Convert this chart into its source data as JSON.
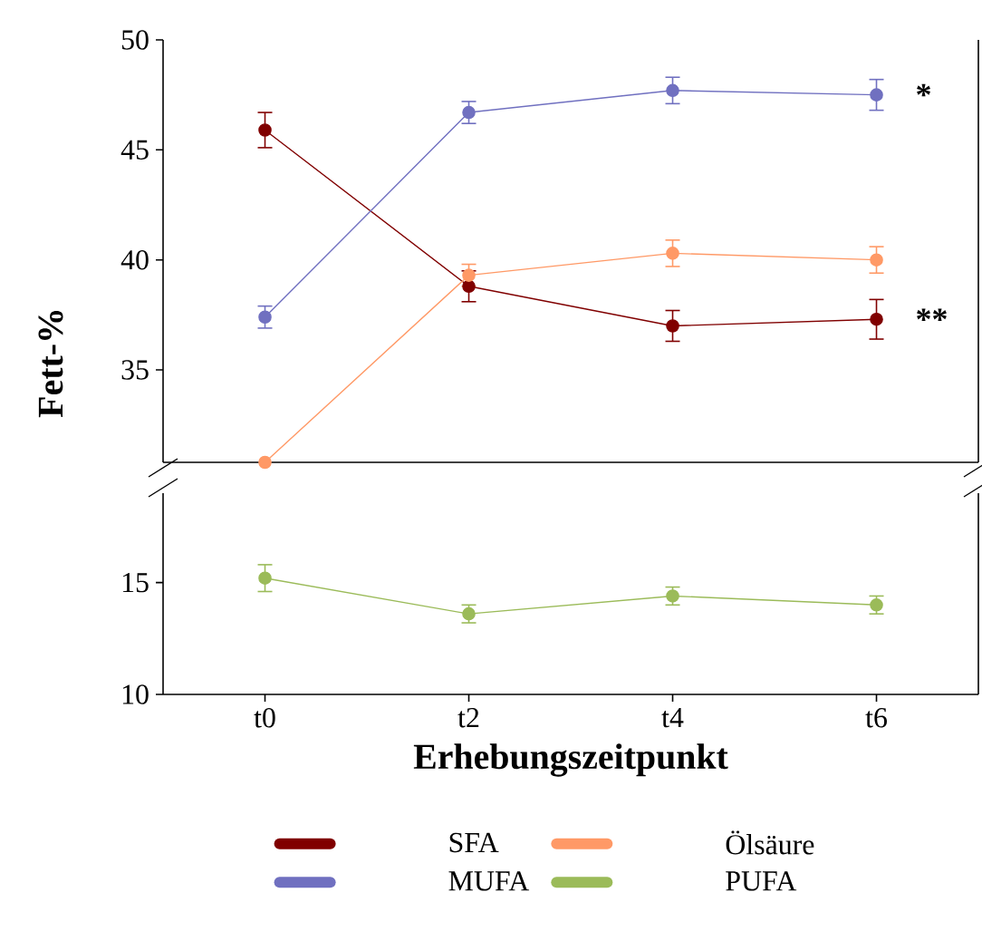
{
  "chart_data": [
    {
      "type": "line",
      "ylabel": "Fett-%",
      "categories": [
        "t0",
        "t2",
        "t4",
        "t6"
      ],
      "ylim": [
        30.8,
        50
      ],
      "yticks": [
        35,
        40,
        45,
        50
      ],
      "tick_labels": "y",
      "marker": "circle",
      "grid": false,
      "series": [
        {
          "name": "SFA",
          "color": "#800000",
          "values": [
            45.9,
            38.8,
            37.0,
            37.3
          ],
          "errors": [
            0.8,
            0.7,
            0.7,
            0.9
          ]
        },
        {
          "name": "MUFA",
          "color": "#7070c0",
          "values": [
            37.4,
            46.7,
            47.7,
            47.5
          ],
          "errors": [
            0.5,
            0.5,
            0.6,
            0.7
          ]
        },
        {
          "name": "Ölsäure",
          "color": "#ff9966",
          "values": [
            30.8,
            39.3,
            40.3,
            40.0
          ],
          "errors": [
            null,
            0.5,
            0.6,
            0.6
          ]
        }
      ],
      "annotations": [
        {
          "text": "*",
          "x": "t6",
          "y": 47.5
        },
        {
          "text": "**",
          "x": "t6",
          "y": 37.3
        }
      ]
    },
    {
      "type": "line",
      "xlabel": "Erhebungszeitpunkt",
      "categories": [
        "t0",
        "t2",
        "t4",
        "t6"
      ],
      "ylim": [
        10,
        19
      ],
      "yticks": [
        10,
        15
      ],
      "marker": "circle",
      "grid": false,
      "legend": "bottom",
      "series": [
        {
          "name": "PUFA",
          "color": "#9bbb59",
          "values": [
            15.2,
            13.6,
            14.4,
            14.0
          ],
          "errors": [
            0.6,
            0.4,
            0.4,
            0.4
          ]
        }
      ]
    }
  ]
}
